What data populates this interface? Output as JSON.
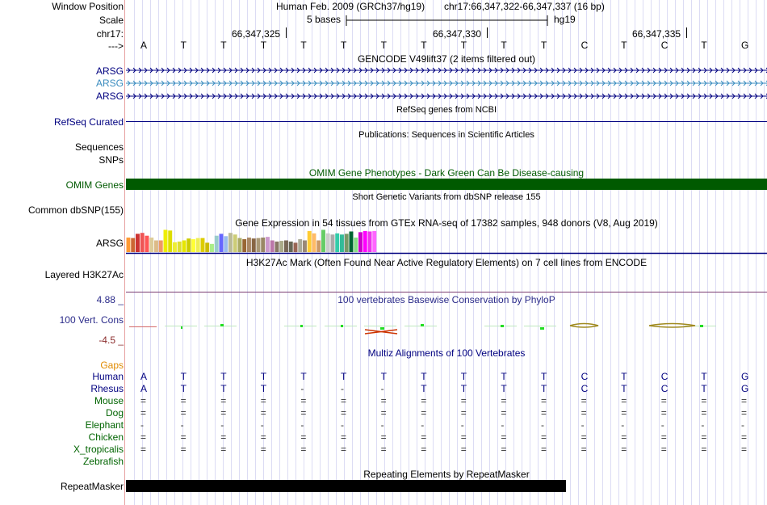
{
  "header": {
    "window_position_label": "Window Position",
    "assembly": "Human Feb. 2009 (GRCh37/hg19)",
    "position": "chr17:66,347,322-66,347,337 (16 bp)",
    "scale_label": "Scale",
    "scale_bases": "5 bases",
    "scale_db": "hg19",
    "chrom_label": "chr17:",
    "strand_label": "--->",
    "ticks": [
      "66,347,325",
      "66,347,330",
      "66,347,335"
    ]
  },
  "bases": [
    "A",
    "T",
    "T",
    "T",
    "T",
    "T",
    "T",
    "T",
    "T",
    "T",
    "T",
    "C",
    "T",
    "C",
    "T",
    "G"
  ],
  "gencode": {
    "title": "GENCODE V49lift37 (2 items filtered out)",
    "genes": [
      {
        "label": "ARSG",
        "color": "#000080"
      },
      {
        "label": "ARSG",
        "color": "#3a8cbf"
      },
      {
        "label": "ARSG",
        "color": "#000080"
      }
    ]
  },
  "refseq": {
    "title": "RefSeq genes from NCBI",
    "label": "RefSeq Curated"
  },
  "publications": {
    "title": "Publications: Sequences in Scientific Articles",
    "label1": "Sequences",
    "label2": "SNPs"
  },
  "omim": {
    "title": "OMIM Gene Phenotypes - Dark Green Can Be Disease-causing",
    "label": "OMIM Genes",
    "color": "#005a00"
  },
  "dbsnp": {
    "title": "Short Genetic Variants from dbSNP release 155",
    "label": "Common dbSNP(155)"
  },
  "gtex": {
    "title": "Gene Expression in 54 tissues from GTEx RNA-seq of 17382 samples, 948 donors (V8, Aug 2019)",
    "label": "ARSG",
    "values": [
      0.62,
      0.6,
      0.78,
      0.82,
      0.7,
      0.62,
      0.5,
      0.5,
      0.95,
      0.92,
      0.42,
      0.45,
      0.5,
      0.58,
      0.55,
      0.6,
      0.6,
      0.4,
      0.35,
      0.7,
      0.78,
      0.68,
      0.82,
      0.75,
      0.6,
      0.55,
      0.62,
      0.58,
      0.6,
      0.62,
      0.65,
      0.5,
      0.45,
      0.48,
      0.5,
      0.45,
      0.4,
      0.55,
      0.5,
      0.9,
      0.8,
      0.5,
      0.95,
      0.8,
      0.75,
      0.8,
      0.75,
      0.78,
      0.88,
      0.62,
      0.85,
      0.9,
      0.88,
      0.9
    ],
    "colors": [
      "#ff9933",
      "#cc6633",
      "#cc3333",
      "#ee5555",
      "#ff5555",
      "#ddcc99",
      "#ddbb88",
      "#ee9966",
      "#eeee00",
      "#dddd00",
      "#eeee33",
      "#dddd33",
      "#e6e600",
      "#cccc00",
      "#ffff33",
      "#eeee55",
      "#ddcc00",
      "#ccbb00",
      "#aaee88",
      "#99cccc",
      "#6666ff",
      "#99bbee",
      "#bbbb99",
      "#cccc77",
      "#aaaa66",
      "#996633",
      "#aa8866",
      "#886644",
      "#aa9977",
      "#998866",
      "#cc99cc",
      "#bb77aa",
      "#887766",
      "#aaaa88",
      "#776655",
      "#666655",
      "#996655",
      "#aaaa99",
      "#998877",
      "#ffcc33",
      "#ffbb66",
      "#cc9966",
      "#66cc66",
      "#cccccc",
      "#aaaaaa",
      "#33ccaa",
      "#33bb99",
      "#779966",
      "#006633",
      "#88dd88",
      "#cc00cc",
      "#ff00ff",
      "#ee33ee",
      "#ff66ff"
    ]
  },
  "h3k27ac": {
    "title": "H3K27Ac Mark (Often Found Near Active Regulatory Elements) on 7 cell lines from ENCODE",
    "label": "Layered H3K27Ac"
  },
  "phylop": {
    "title": "100 vertebrates Basewise Conservation by PhyloP",
    "label": "100 Vert. Cons",
    "max": "4.88 _",
    "min": "-4.5 _"
  },
  "multiz": {
    "title": "Multiz Alignments of 100 Vertebrates",
    "gaps_label": "Gaps",
    "species": [
      {
        "name": "Human",
        "color": "#000080",
        "row": [
          "A",
          "T",
          "T",
          "T",
          "T",
          "T",
          "T",
          "T",
          "T",
          "T",
          "T",
          "C",
          "T",
          "C",
          "T",
          "G"
        ]
      },
      {
        "name": "Rhesus",
        "color": "#000080",
        "row": [
          "A",
          "T",
          "T",
          "T",
          "-",
          "-",
          "-",
          "T",
          "T",
          "T",
          "T",
          "C",
          "T",
          "C",
          "T",
          "G"
        ]
      },
      {
        "name": "Mouse",
        "color": "#006400",
        "row": [
          "=",
          "=",
          "=",
          "=",
          "=",
          "=",
          "=",
          "=",
          "=",
          "=",
          "=",
          "=",
          "=",
          "=",
          "=",
          "="
        ]
      },
      {
        "name": "Dog",
        "color": "#006400",
        "row": [
          "=",
          "=",
          "=",
          "=",
          "=",
          "=",
          "=",
          "=",
          "=",
          "=",
          "=",
          "=",
          "=",
          "=",
          "=",
          "="
        ]
      },
      {
        "name": "Elephant",
        "color": "#006400",
        "row": [
          "-",
          "-",
          "-",
          "-",
          "-",
          "-",
          "-",
          "-",
          "-",
          "-",
          "-",
          "-",
          "-",
          "-",
          "-",
          "-"
        ]
      },
      {
        "name": "Chicken",
        "color": "#006400",
        "row": [
          "=",
          "=",
          "=",
          "=",
          "=",
          "=",
          "=",
          "=",
          "=",
          "=",
          "=",
          "=",
          "=",
          "=",
          "=",
          "="
        ]
      },
      {
        "name": "X_tropicalis",
        "color": "#006400",
        "row": [
          "=",
          "=",
          "=",
          "=",
          "=",
          "=",
          "=",
          "=",
          "=",
          "=",
          "=",
          "=",
          "=",
          "=",
          "=",
          "="
        ]
      },
      {
        "name": "Zebrafish",
        "color": "#006400",
        "row": [
          "",
          "",
          "",
          "",
          "",
          "",
          "",
          "",
          "",
          "",
          "",
          "",
          "",
          "",
          "",
          ""
        ]
      }
    ]
  },
  "repeatmasker": {
    "title": "Repeating Elements by RepeatMasker",
    "label": "RepeatMasker"
  }
}
